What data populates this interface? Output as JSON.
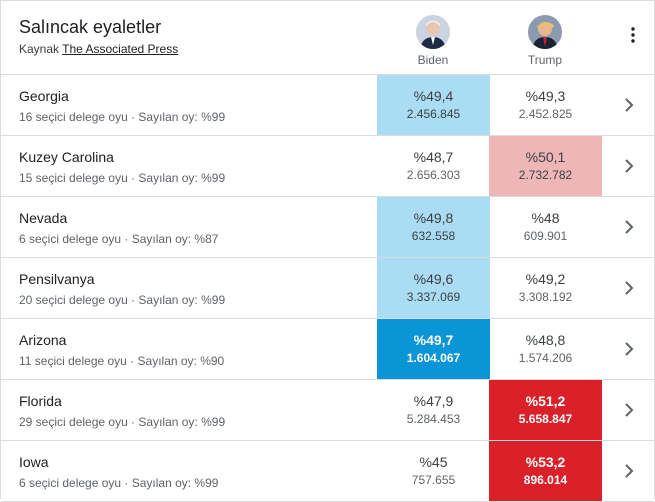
{
  "header": {
    "title": "Salıncak eyaletler",
    "source_prefix": "Kaynak",
    "source_link": "The Associated Press"
  },
  "candidates": {
    "biden": {
      "name": "Biden",
      "icon": "biden-avatar"
    },
    "trump": {
      "name": "Trump",
      "icon": "trump-avatar"
    }
  },
  "icons": {
    "menu": "more-vert-icon",
    "row_chevron": "chevron-right-icon"
  },
  "colors": {
    "biden_light": "#aadcf4",
    "biden_strong": "#0a95d6",
    "trump_light": "#efb6b8",
    "trump_strong": "#da2129"
  },
  "rows": [
    {
      "state": "Georgia",
      "meta": "16 seçici delege oyu · Sayılan oy: %99",
      "biden": {
        "pct": "%49,4",
        "votes": "2.456.845",
        "shade": "light"
      },
      "trump": {
        "pct": "%49,3",
        "votes": "2.452.825",
        "shade": "none"
      }
    },
    {
      "state": "Kuzey Carolina",
      "meta": "15 seçici delege oyu · Sayılan oy: %99",
      "biden": {
        "pct": "%48,7",
        "votes": "2.656.303",
        "shade": "none"
      },
      "trump": {
        "pct": "%50,1",
        "votes": "2.732.782",
        "shade": "light"
      }
    },
    {
      "state": "Nevada",
      "meta": "6 seçici delege oyu · Sayılan oy: %87",
      "biden": {
        "pct": "%49,8",
        "votes": "632.558",
        "shade": "light"
      },
      "trump": {
        "pct": "%48",
        "votes": "609.901",
        "shade": "none"
      }
    },
    {
      "state": "Pensilvanya",
      "meta": "20 seçici delege oyu · Sayılan oy: %99",
      "biden": {
        "pct": "%49,6",
        "votes": "3.337.069",
        "shade": "light"
      },
      "trump": {
        "pct": "%49,2",
        "votes": "3.308.192",
        "shade": "none"
      }
    },
    {
      "state": "Arizona",
      "meta": "11 seçici delege oyu · Sayılan oy: %90",
      "biden": {
        "pct": "%49,7",
        "votes": "1.604.067",
        "shade": "strong"
      },
      "trump": {
        "pct": "%48,8",
        "votes": "1.574.206",
        "shade": "none"
      }
    },
    {
      "state": "Florida",
      "meta": "29 seçici delege oyu · Sayılan oy: %99",
      "biden": {
        "pct": "%47,9",
        "votes": "5.284.453",
        "shade": "none"
      },
      "trump": {
        "pct": "%51,2",
        "votes": "5.658.847",
        "shade": "strong"
      }
    },
    {
      "state": "Iowa",
      "meta": "6 seçici delege oyu · Sayılan oy: %99",
      "biden": {
        "pct": "%45",
        "votes": "757.655",
        "shade": "none"
      },
      "trump": {
        "pct": "%53,2",
        "votes": "896.014",
        "shade": "strong"
      }
    }
  ]
}
